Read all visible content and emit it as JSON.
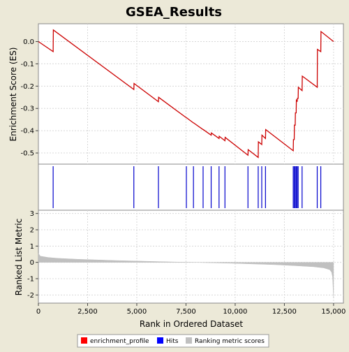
{
  "chart_data": {
    "type": "line",
    "title": "GSEA_Results",
    "xlabel": "Rank in Ordered Dataset",
    "x_ticks": [
      0,
      2500,
      5000,
      7500,
      10000,
      12500,
      15000
    ],
    "x_tick_labels": [
      "0",
      "2,500",
      "5,000",
      "7,500",
      "10,000",
      "12,500",
      "15,000"
    ],
    "xlim": [
      0,
      15500
    ],
    "panels": {
      "es": {
        "ylabel": "Enrichment Score (ES)",
        "ylim": [
          -0.55,
          0.08
        ],
        "y_ticks": [
          0.0,
          -0.1,
          -0.2,
          -0.3,
          -0.4,
          -0.5
        ],
        "y_tick_labels": [
          "0.0",
          "-0.1",
          "-0.2",
          "-0.3",
          "-0.4",
          "-0.5"
        ],
        "grid": true,
        "series": [
          {
            "name": "enrichment_profile",
            "color": "#cc0000",
            "x": [
              0,
              750,
              760,
              4850,
              4860,
              6100,
              6110,
              7520,
              7530,
              7880,
              7890,
              8370,
              8380,
              8780,
              8790,
              9180,
              9190,
              9480,
              9490,
              10650,
              10660,
              11170,
              11180,
              11350,
              11360,
              11540,
              11550,
              12950,
              12960,
              13000,
              13010,
              13050,
              13060,
              13100,
              13110,
              13150,
              13160,
              13200,
              13210,
              13400,
              13410,
              14170,
              14180,
              14350,
              14360,
              15000
            ],
            "y": [
              0.0,
              -0.045,
              0.052,
              -0.215,
              -0.188,
              -0.27,
              -0.25,
              -0.342,
              -0.342,
              -0.365,
              -0.365,
              -0.395,
              -0.395,
              -0.42,
              -0.41,
              -0.435,
              -0.425,
              -0.445,
              -0.43,
              -0.51,
              -0.485,
              -0.52,
              -0.45,
              -0.462,
              -0.42,
              -0.435,
              -0.395,
              -0.49,
              -0.44,
              -0.44,
              -0.375,
              -0.375,
              -0.32,
              -0.32,
              -0.26,
              -0.27,
              -0.255,
              -0.255,
              -0.205,
              -0.22,
              -0.155,
              -0.205,
              -0.035,
              -0.045,
              0.045,
              0.0
            ]
          }
        ]
      },
      "hits": {
        "name": "Hits",
        "color": "#0000cc",
        "positions": [
          750,
          4850,
          6100,
          7520,
          7880,
          8370,
          8780,
          9180,
          9480,
          10650,
          11170,
          11350,
          11540,
          12950,
          13000,
          13050,
          13100,
          13150,
          13200,
          13400,
          14170,
          14350
        ]
      },
      "metric": {
        "name": "Ranking metric scores",
        "ylabel": "Ranked List Metric",
        "color": "#c0c0c0",
        "ylim": [
          -2.5,
          3.2
        ],
        "y_ticks": [
          3,
          2,
          1,
          0,
          -1,
          -2
        ],
        "y_tick_labels": [
          "3",
          "2",
          "1",
          "0",
          "-1",
          "-2"
        ],
        "grid": true,
        "x": [
          0,
          100,
          500,
          1000,
          2000,
          3000,
          4000,
          5000,
          6000,
          7000,
          8000,
          9000,
          10000,
          11000,
          12000,
          13000,
          14000,
          14500,
          14800,
          14900,
          14950,
          15000
        ],
        "values": [
          0.55,
          0.38,
          0.3,
          0.25,
          0.19,
          0.15,
          0.11,
          0.08,
          0.05,
          0.02,
          0.0,
          -0.03,
          -0.06,
          -0.1,
          -0.14,
          -0.2,
          -0.27,
          -0.34,
          -0.45,
          -0.6,
          -0.9,
          -2.2
        ]
      }
    },
    "legend": {
      "placement": "bottom",
      "items": [
        {
          "label": "enrichment_profile",
          "color": "#ff0000"
        },
        {
          "label": "Hits",
          "color": "#0000ff"
        },
        {
          "label": "Ranking metric scores",
          "color": "#c0c0c0"
        }
      ]
    }
  }
}
